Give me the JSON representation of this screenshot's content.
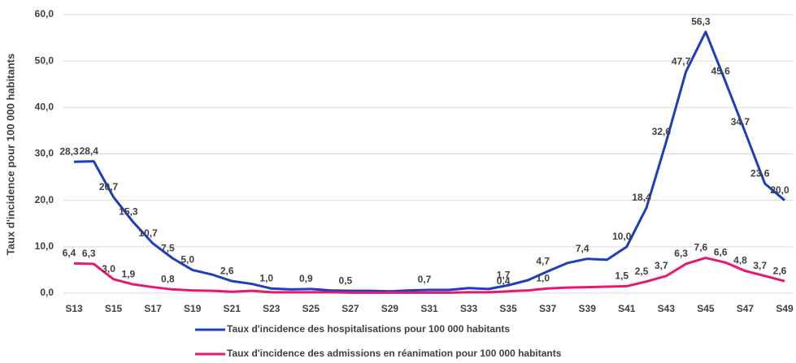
{
  "chart_data": {
    "type": "line",
    "y_axis_label": "Taux d'incidence pour 100 000 habitants",
    "categories": [
      "S13",
      null,
      "S15",
      null,
      "S17",
      null,
      "S19",
      null,
      "S21",
      null,
      "S23",
      null,
      "S25",
      null,
      "S27",
      null,
      "S29",
      null,
      "S31",
      null,
      "S33",
      null,
      "S35",
      null,
      "S37",
      null,
      "S39",
      null,
      "S41",
      null,
      "S43",
      null,
      "S45",
      null,
      "S47",
      null,
      "S49"
    ],
    "ylim": [
      0,
      60
    ],
    "yticks": [
      {
        "value": 0,
        "label": "0,0"
      },
      {
        "value": 10,
        "label": "10,0"
      },
      {
        "value": 20,
        "label": "20,0"
      },
      {
        "value": 30,
        "label": "30,0"
      },
      {
        "value": 40,
        "label": "40,0"
      },
      {
        "value": 50,
        "label": "50,0"
      },
      {
        "value": 60,
        "label": "60,0"
      }
    ],
    "grid": true,
    "legend": "bottom",
    "series": [
      {
        "name": "Taux d'incidence des hospitalisations pour 100 000 habitants",
        "color": "#1c3fbe",
        "values": [
          28.3,
          28.4,
          20.7,
          15.3,
          10.7,
          7.5,
          5.0,
          4.0,
          2.6,
          2.0,
          1.0,
          0.8,
          0.9,
          0.6,
          0.5,
          0.5,
          0.4,
          0.6,
          0.7,
          0.7,
          1.1,
          0.9,
          1.7,
          2.8,
          4.7,
          6.5,
          7.4,
          7.2,
          10.0,
          18.4,
          32.6,
          47.7,
          56.3,
          45.6,
          34.7,
          23.6,
          20.0
        ],
        "value_labels": [
          "28,3",
          "28,4",
          "20,7",
          "15,3",
          "10,7",
          "7,5",
          "5,0",
          null,
          "2,6",
          null,
          "1,0",
          null,
          "0,9",
          null,
          "0,5",
          null,
          null,
          null,
          "0,7",
          null,
          null,
          null,
          "1,7",
          null,
          "4,7",
          null,
          "7,4",
          null,
          "10,0",
          "18,4",
          "32,6",
          "47,7",
          "56,3",
          "45,6",
          "34,7",
          "23,6",
          "20,0"
        ]
      },
      {
        "name": "Taux d'incidence des admissions en réanimation pour 100 000 habitants",
        "color": "#e8176f",
        "values": [
          6.4,
          6.3,
          3.0,
          1.9,
          1.3,
          0.8,
          0.6,
          0.5,
          0.3,
          0.5,
          0.2,
          0.2,
          0.2,
          0.2,
          0.1,
          0.1,
          0.1,
          0.1,
          0.1,
          0.1,
          0.2,
          0.2,
          0.4,
          0.6,
          1.0,
          1.2,
          1.3,
          1.4,
          1.5,
          2.5,
          3.7,
          6.3,
          7.6,
          6.6,
          4.8,
          3.7,
          2.6
        ],
        "value_labels": [
          "6,4",
          "6,3",
          "3,0",
          "1,9",
          null,
          "0,8",
          null,
          null,
          null,
          null,
          null,
          null,
          null,
          null,
          null,
          null,
          null,
          null,
          null,
          null,
          null,
          null,
          "0,4",
          null,
          "1,0",
          null,
          null,
          null,
          "1,5",
          "2,5",
          "3,7",
          "6,3",
          "7,6",
          "6,6",
          "4,8",
          "3,7",
          "2,6"
        ]
      }
    ]
  }
}
